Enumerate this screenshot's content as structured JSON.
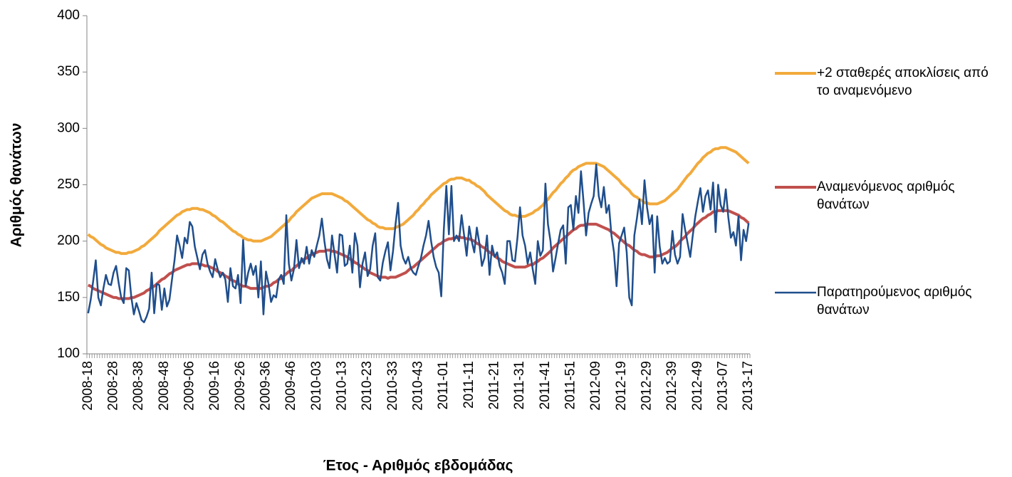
{
  "chart_data": {
    "type": "line",
    "y_label": "Αριθμός θανάτων",
    "x_label": "Έτος - Αριθμός εβδομάδας",
    "ylim": [
      100,
      400
    ],
    "yticks": [
      100,
      150,
      200,
      250,
      300,
      350,
      400
    ],
    "grid": false,
    "legend": "right",
    "categories": [
      "2008-18",
      null,
      null,
      null,
      null,
      null,
      null,
      null,
      null,
      null,
      "2008-28",
      null,
      null,
      null,
      null,
      null,
      null,
      null,
      null,
      null,
      "2008-38",
      null,
      null,
      null,
      null,
      null,
      null,
      null,
      null,
      null,
      "2008-48",
      null,
      null,
      null,
      null,
      null,
      null,
      null,
      null,
      null,
      "2009-06",
      null,
      null,
      null,
      null,
      null,
      null,
      null,
      null,
      null,
      "2009-16",
      null,
      null,
      null,
      null,
      null,
      null,
      null,
      null,
      null,
      "2009-26",
      null,
      null,
      null,
      null,
      null,
      null,
      null,
      null,
      null,
      "2009-36",
      null,
      null,
      null,
      null,
      null,
      null,
      null,
      null,
      null,
      "2009-46",
      null,
      null,
      null,
      null,
      null,
      null,
      null,
      null,
      null,
      "2010-03",
      null,
      null,
      null,
      null,
      null,
      null,
      null,
      null,
      null,
      "2010-13",
      null,
      null,
      null,
      null,
      null,
      null,
      null,
      null,
      null,
      "2010-23",
      null,
      null,
      null,
      null,
      null,
      null,
      null,
      null,
      null,
      "2010-33",
      null,
      null,
      null,
      null,
      null,
      null,
      null,
      null,
      null,
      "2010-43",
      null,
      null,
      null,
      null,
      null,
      null,
      null,
      null,
      null,
      "2011-01",
      null,
      null,
      null,
      null,
      null,
      null,
      null,
      null,
      null,
      "2011-11",
      null,
      null,
      null,
      null,
      null,
      null,
      null,
      null,
      null,
      "2011-21",
      null,
      null,
      null,
      null,
      null,
      null,
      null,
      null,
      null,
      "2011-31",
      null,
      null,
      null,
      null,
      null,
      null,
      null,
      null,
      null,
      "2011-41",
      null,
      null,
      null,
      null,
      null,
      null,
      null,
      null,
      null,
      "2011-51",
      null,
      null,
      null,
      null,
      null,
      null,
      null,
      null,
      null,
      "2012-09",
      null,
      null,
      null,
      null,
      null,
      null,
      null,
      null,
      null,
      "2012-19",
      null,
      null,
      null,
      null,
      null,
      null,
      null,
      null,
      null,
      "2012-29",
      null,
      null,
      null,
      null,
      null,
      null,
      null,
      null,
      null,
      "2012-39",
      null,
      null,
      null,
      null,
      null,
      null,
      null,
      null,
      null,
      "2012-49",
      null,
      null,
      null,
      null,
      null,
      null,
      null,
      null,
      null,
      "2013-07",
      null,
      null,
      null,
      null,
      null,
      null,
      null,
      null,
      null,
      "2013-17"
    ],
    "series": [
      {
        "name": "+2 σταθερές αποκλίσεις από το αναμενόμενο",
        "color": "#F2AA3C",
        "width": 4,
        "values": [
          206,
          204,
          203,
          201,
          199,
          197,
          196,
          194,
          193,
          192,
          191,
          190,
          190,
          189,
          189,
          189,
          190,
          190,
          191,
          192,
          193,
          195,
          196,
          198,
          200,
          202,
          204,
          206,
          209,
          211,
          213,
          215,
          217,
          219,
          221,
          223,
          224,
          226,
          227,
          228,
          228,
          229,
          229,
          229,
          228,
          228,
          227,
          226,
          225,
          223,
          222,
          220,
          218,
          217,
          215,
          213,
          211,
          209,
          208,
          206,
          205,
          203,
          202,
          201,
          201,
          200,
          200,
          200,
          200,
          201,
          202,
          203,
          204,
          206,
          208,
          210,
          212,
          214,
          216,
          218,
          221,
          223,
          226,
          228,
          230,
          232,
          234,
          236,
          238,
          239,
          240,
          241,
          242,
          242,
          242,
          242,
          242,
          241,
          240,
          239,
          238,
          236,
          235,
          233,
          231,
          229,
          227,
          225,
          223,
          221,
          219,
          218,
          216,
          215,
          213,
          212,
          212,
          211,
          211,
          211,
          211,
          212,
          213,
          214,
          215,
          217,
          219,
          221,
          223,
          226,
          228,
          231,
          233,
          236,
          238,
          241,
          243,
          245,
          247,
          249,
          251,
          252,
          254,
          255,
          255,
          256,
          256,
          256,
          255,
          254,
          254,
          252,
          251,
          249,
          248,
          246,
          244,
          241,
          239,
          237,
          235,
          233,
          231,
          229,
          227,
          226,
          224,
          223,
          223,
          222,
          222,
          222,
          222,
          223,
          224,
          225,
          227,
          228,
          230,
          232,
          235,
          237,
          240,
          243,
          245,
          248,
          251,
          253,
          256,
          258,
          261,
          263,
          264,
          266,
          267,
          268,
          269,
          269,
          269,
          269,
          269,
          268,
          267,
          266,
          264,
          262,
          260,
          258,
          256,
          254,
          251,
          249,
          247,
          245,
          242,
          240,
          239,
          237,
          236,
          234,
          234,
          233,
          233,
          233,
          233,
          234,
          235,
          236,
          238,
          240,
          242,
          244,
          246,
          249,
          252,
          255,
          258,
          260,
          263,
          266,
          269,
          271,
          274,
          276,
          278,
          279,
          281,
          282,
          282,
          283,
          283,
          283,
          282,
          281,
          280,
          279,
          277,
          275,
          273,
          271,
          269
        ]
      },
      {
        "name": "Αναμενόμενος αριθμός θανάτων",
        "color": "#C0504D",
        "width": 4,
        "values": [
          161,
          160,
          158,
          157,
          156,
          155,
          154,
          153,
          152,
          151,
          150,
          150,
          149,
          149,
          149,
          149,
          149,
          150,
          150,
          151,
          152,
          153,
          154,
          156,
          157,
          159,
          160,
          162,
          164,
          166,
          167,
          169,
          171,
          172,
          174,
          175,
          176,
          177,
          178,
          179,
          179,
          180,
          180,
          180,
          179,
          179,
          178,
          178,
          177,
          176,
          175,
          173,
          172,
          171,
          169,
          168,
          166,
          165,
          164,
          162,
          161,
          160,
          160,
          159,
          158,
          158,
          158,
          158,
          158,
          159,
          160,
          160,
          161,
          163,
          164,
          166,
          167,
          169,
          171,
          173,
          174,
          176,
          178,
          180,
          182,
          184,
          185,
          187,
          188,
          189,
          190,
          191,
          191,
          191,
          192,
          192,
          191,
          191,
          190,
          189,
          188,
          187,
          186,
          184,
          183,
          181,
          180,
          178,
          177,
          175,
          174,
          172,
          171,
          170,
          169,
          168,
          168,
          168,
          167,
          168,
          168,
          168,
          169,
          170,
          171,
          172,
          174,
          176,
          177,
          179,
          181,
          183,
          185,
          187,
          189,
          191,
          193,
          195,
          197,
          198,
          200,
          201,
          202,
          202,
          203,
          203,
          204,
          203,
          203,
          202,
          202,
          201,
          200,
          198,
          197,
          195,
          194,
          192,
          190,
          189,
          187,
          185,
          184,
          182,
          181,
          180,
          179,
          178,
          177,
          177,
          177,
          177,
          177,
          178,
          179,
          179,
          181,
          182,
          184,
          185,
          187,
          189,
          191,
          194,
          196,
          198,
          200,
          202,
          204,
          206,
          208,
          210,
          211,
          213,
          214,
          214,
          215,
          215,
          215,
          215,
          215,
          214,
          213,
          212,
          211,
          210,
          208,
          207,
          205,
          203,
          201,
          199,
          197,
          196,
          194,
          192,
          191,
          189,
          188,
          188,
          187,
          186,
          186,
          186,
          187,
          187,
          188,
          189,
          190,
          192,
          194,
          195,
          197,
          200,
          202,
          204,
          207,
          209,
          211,
          214,
          216,
          218,
          220,
          221,
          223,
          224,
          226,
          226,
          227,
          227,
          227,
          227,
          227,
          226,
          225,
          224,
          223,
          221,
          220,
          218,
          216
        ]
      },
      {
        "name": "Παρατηρούμενος αριθμός θανάτων",
        "color": "#1F4E8C",
        "width": 2.5,
        "values": [
          136,
          148,
          165,
          183,
          150,
          143,
          158,
          170,
          162,
          161,
          172,
          178,
          163,
          150,
          145,
          176,
          174,
          150,
          135,
          145,
          138,
          130,
          128,
          133,
          140,
          172,
          136,
          162,
          161,
          139,
          158,
          142,
          148,
          166,
          183,
          205,
          196,
          185,
          203,
          198,
          217,
          213,
          195,
          185,
          175,
          188,
          192,
          180,
          173,
          168,
          184,
          175,
          168,
          172,
          166,
          146,
          176,
          160,
          158,
          170,
          145,
          201,
          160,
          172,
          180,
          170,
          178,
          150,
          182,
          135,
          173,
          162,
          146,
          152,
          150,
          166,
          170,
          162,
          223,
          180,
          165,
          175,
          201,
          176,
          185,
          180,
          195,
          180,
          192,
          186,
          196,
          205,
          220,
          200,
          184,
          176,
          205,
          188,
          172,
          206,
          205,
          178,
          180,
          196,
          172,
          207,
          196,
          159,
          180,
          190,
          169,
          175,
          196,
          207,
          168,
          165,
          181,
          191,
          199,
          174,
          191,
          215,
          234,
          196,
          185,
          180,
          186,
          176,
          172,
          170,
          178,
          185,
          196,
          205,
          218,
          200,
          186,
          177,
          172,
          151,
          210,
          249,
          206,
          249,
          200,
          205,
          200,
          223,
          205,
          187,
          213,
          200,
          190,
          212,
          198,
          178,
          185,
          205,
          170,
          196,
          186,
          190,
          178,
          172,
          162,
          200,
          200,
          183,
          182,
          203,
          230,
          205,
          196,
          180,
          190,
          175,
          162,
          200,
          187,
          192,
          251,
          215,
          200,
          173,
          185,
          198,
          210,
          214,
          180,
          230,
          232,
          210,
          240,
          225,
          262,
          235,
          205,
          225,
          233,
          240,
          268,
          240,
          230,
          248,
          225,
          232,
          205,
          190,
          160,
          198,
          205,
          212,
          190,
          150,
          143,
          205,
          220,
          237,
          215,
          254,
          230,
          215,
          223,
          172,
          222,
          195,
          180,
          185,
          180,
          182,
          209,
          188,
          180,
          186,
          224,
          210,
          198,
          186,
          205,
          222,
          235,
          247,
          226,
          240,
          245,
          228,
          252,
          208,
          250,
          232,
          226,
          246,
          221,
          203,
          208,
          196,
          222,
          183,
          210,
          200,
          216
        ]
      }
    ]
  }
}
